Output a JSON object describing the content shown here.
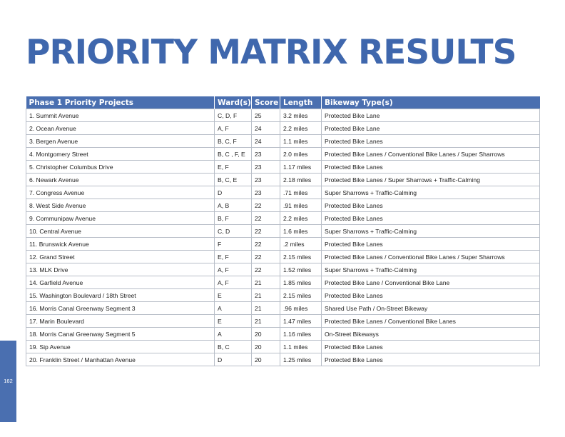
{
  "title": "PRIORITY MATRIX RESULTS",
  "page_number": "162",
  "colors": {
    "accent": "#3f67ad",
    "header_fill": "#4a6fb0",
    "border": "#b8bec8"
  },
  "table": {
    "headers": {
      "project": "Phase 1 Priority Projects",
      "wards": "Ward(s)",
      "score": "Score",
      "length": "Length",
      "type": "Bikeway Type(s)"
    },
    "rows": [
      {
        "project": "1. Summit Avenue",
        "wards": "C, D, F",
        "score": "25",
        "length": "3.2 miles",
        "type": "Protected Bike Lane"
      },
      {
        "project": "2. Ocean Avenue",
        "wards": "A, F",
        "score": "24",
        "length": "2.2 miles",
        "type": "Protected Bike Lane"
      },
      {
        "project": "3. Bergen Avenue",
        "wards": "B, C, F",
        "score": "24",
        "length": "1.1 miles",
        "type": "Protected Bike Lanes"
      },
      {
        "project": "4. Montgomery Street",
        "wards": "B, C , F, E",
        "score": "23",
        "length": "2.0 miles",
        "type": "Protected Bike Lanes / Conventional Bike Lanes / Super Sharrows"
      },
      {
        "project": "5. Christopher Columbus Drive",
        "wards": "E, F",
        "score": "23",
        "length": "1.17 miles",
        "type": "Protected Bike Lanes"
      },
      {
        "project": "6. Newark Avenue",
        "wards": "B, C, E",
        "score": "23",
        "length": "2.18 miles",
        "type": "Protected Bike Lanes / Super Sharrows + Traffic-Calming"
      },
      {
        "project": "7. Congress Avenue",
        "wards": "D",
        "score": "23",
        "length": ".71 miles",
        "type": "Super Sharrows + Traffic-Calming"
      },
      {
        "project": "8. West Side Avenue",
        "wards": "A, B",
        "score": "22",
        "length": ".91 miles",
        "type": "Protected Bike Lanes"
      },
      {
        "project": "9. Communipaw Avenue",
        "wards": "B, F",
        "score": "22",
        "length": "2.2 miles",
        "type": "Protected Bike Lanes"
      },
      {
        "project": "10. Central Avenue",
        "wards": "C, D",
        "score": "22",
        "length": "1.6 miles",
        "type": "Super Sharrows + Traffic-Calming"
      },
      {
        "project": "11. Brunswick Avenue",
        "wards": "F",
        "score": "22",
        "length": ".2 miles",
        "type": "Protected Bike Lanes"
      },
      {
        "project": "12. Grand Street",
        "wards": "E, F",
        "score": "22",
        "length": "2.15 miles",
        "type": "Protected Bike Lanes / Conventional Bike Lanes / Super Sharrows"
      },
      {
        "project": "13. MLK Drive",
        "wards": "A, F",
        "score": "22",
        "length": "1.52 miles",
        "type": "Super Sharrows + Traffic-Calming"
      },
      {
        "project": "14. Garfield Avenue",
        "wards": "A, F",
        "score": "21",
        "length": "1.85 miles",
        "type": "Protected Bike Lane / Conventional Bike Lane"
      },
      {
        "project": "15. Washington Boulevard / 18th Street",
        "wards": "E",
        "score": "21",
        "length": "2.15 miles",
        "type": "Protected Bike Lanes"
      },
      {
        "project": "16. Morris Canal Greenway Segment 3",
        "wards": "A",
        "score": "21",
        "length": ".96 miles",
        "type": "Shared Use Path / On-Street Bikeway"
      },
      {
        "project": "17. Marin Boulevard",
        "wards": "E",
        "score": "21",
        "length": "1.47 miles",
        "type": "Protected Bike Lanes / Conventional Bike Lanes"
      },
      {
        "project": "18. Morris Canal Greenway Segment 5",
        "wards": "A",
        "score": "20",
        "length": "1.16 miles",
        "type": "On-Street Bikeways"
      },
      {
        "project": "19. Sip Avenue",
        "wards": "B, C",
        "score": "20",
        "length": "1.1 miles",
        "type": "Protected Bike Lanes"
      },
      {
        "project": "20. Franklin Street / Manhattan Avenue",
        "wards": "D",
        "score": "20",
        "length": "1.25 miles",
        "type": "Protected Bike Lanes"
      }
    ]
  }
}
